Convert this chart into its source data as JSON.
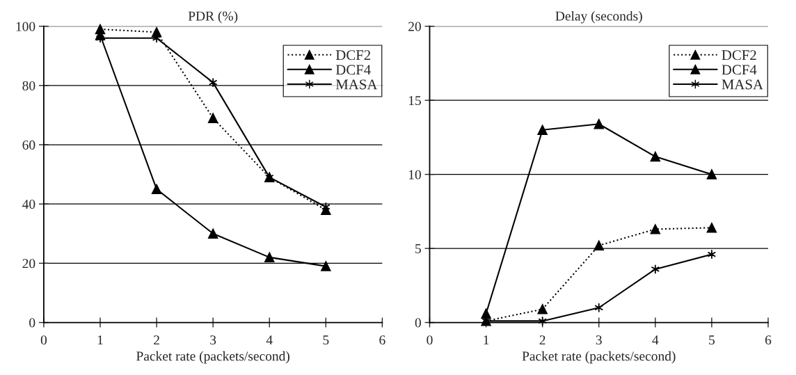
{
  "chart_data": [
    {
      "type": "line",
      "title": "PDR (%)",
      "xlabel": "Packet rate (packets/second)",
      "x": [
        1,
        2,
        3,
        4,
        5
      ],
      "xlim": [
        0,
        6
      ],
      "xticks": [
        0,
        1,
        2,
        3,
        4,
        5,
        6
      ],
      "ylim": [
        0,
        100
      ],
      "yticks": [
        0,
        20,
        40,
        60,
        80,
        100
      ],
      "grid": "y",
      "legend": "top right",
      "series": [
        {
          "name": "DCF2",
          "color": "#000000",
          "marker": "triangle",
          "line_style": "dotted",
          "values": [
            99,
            98,
            69,
            49,
            38
          ]
        },
        {
          "name": "DCF4",
          "color": "#000000",
          "marker": "triangle",
          "line_style": "solid",
          "values": [
            97,
            45,
            30,
            22,
            19
          ]
        },
        {
          "name": "MASA",
          "color": "#000000",
          "marker": "cross",
          "line_style": "solid",
          "values": [
            96,
            96,
            81,
            49,
            39
          ]
        }
      ]
    },
    {
      "type": "line",
      "title": "Delay (seconds)",
      "xlabel": "Packet rate (packets/second)",
      "x": [
        1,
        2,
        3,
        4,
        5
      ],
      "xlim": [
        0,
        6
      ],
      "xticks": [
        0,
        1,
        2,
        3,
        4,
        5,
        6
      ],
      "ylim": [
        0,
        20
      ],
      "yticks": [
        0,
        5,
        10,
        15,
        20
      ],
      "grid": "y",
      "legend": "top right",
      "series": [
        {
          "name": "DCF2",
          "color": "#000000",
          "marker": "triangle",
          "line_style": "dotted",
          "values": [
            0.1,
            0.9,
            5.2,
            6.3,
            6.4
          ]
        },
        {
          "name": "DCF4",
          "color": "#000000",
          "marker": "triangle",
          "line_style": "solid",
          "values": [
            0.6,
            13.0,
            13.4,
            11.2,
            10.0
          ]
        },
        {
          "name": "MASA",
          "color": "#000000",
          "marker": "cross",
          "line_style": "solid",
          "values": [
            0.1,
            0.1,
            1.0,
            3.6,
            4.6
          ]
        }
      ]
    }
  ]
}
